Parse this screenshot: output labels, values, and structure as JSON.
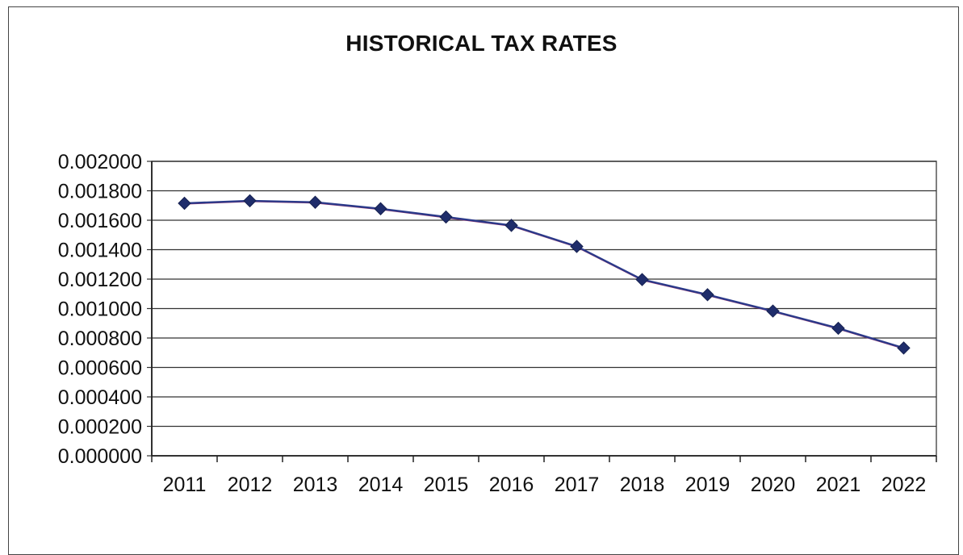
{
  "chart_data": {
    "type": "line",
    "title": "HISTORICAL TAX RATES",
    "xlabel": "",
    "ylabel": "",
    "categories": [
      "2011",
      "2012",
      "2013",
      "2014",
      "2015",
      "2016",
      "2017",
      "2018",
      "2019",
      "2020",
      "2021",
      "2022"
    ],
    "series": [
      {
        "values": [
          0.001715,
          0.001732,
          0.001722,
          0.001678,
          0.001622,
          0.001565,
          0.001422,
          0.001197,
          0.001094,
          0.000983,
          0.000866,
          0.000732
        ],
        "color": "#2b3a8a",
        "marker": "diamond",
        "marker_color": "#1f2d6b"
      }
    ],
    "ylim": [
      0,
      0.002
    ],
    "yticks": [
      "0.000000",
      "0.000200",
      "0.000400",
      "0.000600",
      "0.000800",
      "0.001000",
      "0.001200",
      "0.001400",
      "0.001600",
      "0.001800",
      "0.002000"
    ],
    "grid": true,
    "legend": "none"
  }
}
